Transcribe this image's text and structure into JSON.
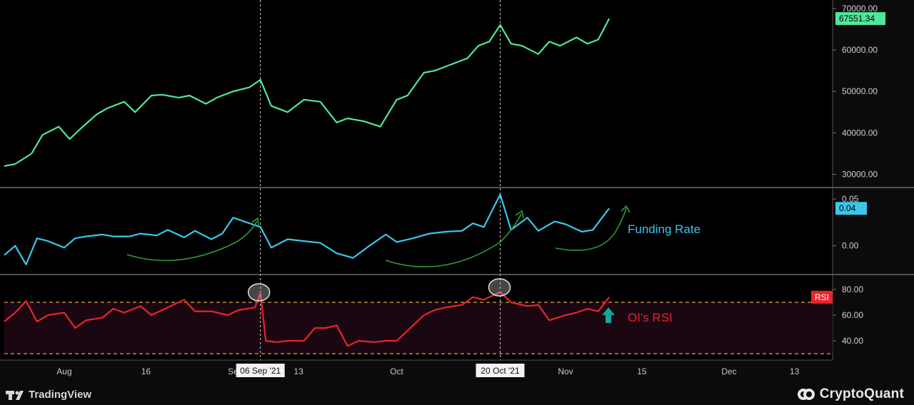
{
  "chart_data": [
    {
      "type": "line",
      "panel": "price",
      "ylim": [
        27000,
        71000
      ],
      "yticks": [
        30000,
        40000,
        50000,
        60000,
        70000
      ],
      "ytick_labels": [
        "30000.00",
        "40000.00",
        "50000.00",
        "60000.00",
        "70000.00"
      ],
      "last_value_label": "67551.34",
      "series": [
        {
          "color": "#4ee89a",
          "x": [
            "2021-07-21",
            "2021-07-23",
            "2021-07-26",
            "2021-07-28",
            "2021-07-31",
            "2021-08-02",
            "2021-08-04",
            "2021-08-07",
            "2021-08-09",
            "2021-08-12",
            "2021-08-14",
            "2021-08-17",
            "2021-08-19",
            "2021-08-22",
            "2021-08-24",
            "2021-08-27",
            "2021-08-29",
            "2021-09-01",
            "2021-09-04",
            "2021-09-06",
            "2021-09-08",
            "2021-09-11",
            "2021-09-14",
            "2021-09-17",
            "2021-09-20",
            "2021-09-22",
            "2021-09-25",
            "2021-09-28",
            "2021-10-01",
            "2021-10-03",
            "2021-10-06",
            "2021-10-08",
            "2021-10-11",
            "2021-10-14",
            "2021-10-16",
            "2021-10-18",
            "2021-10-20",
            "2021-10-22",
            "2021-10-24",
            "2021-10-27",
            "2021-10-29",
            "2021-10-31",
            "2021-11-03",
            "2021-11-05",
            "2021-11-07",
            "2021-11-09"
          ],
          "y": [
            32000,
            32500,
            35000,
            39500,
            41500,
            38500,
            41000,
            44500,
            46000,
            47500,
            45000,
            49000,
            49200,
            48500,
            49000,
            47000,
            48500,
            50000,
            51000,
            52800,
            46500,
            45000,
            48000,
            47500,
            42500,
            43500,
            42800,
            41500,
            48000,
            49000,
            54500,
            55000,
            56500,
            58000,
            61000,
            62000,
            66000,
            61500,
            61000,
            59000,
            62000,
            61000,
            63000,
            61500,
            62500,
            67551
          ]
        }
      ]
    },
    {
      "type": "line",
      "panel": "funding-rate",
      "ylim": [
        -0.03,
        0.06
      ],
      "yticks": [
        0.0,
        0.05
      ],
      "ytick_labels": [
        "0.00",
        "0.05"
      ],
      "last_value_label": "0.04",
      "annotation": "Funding Rate",
      "series": [
        {
          "color": "#3cc6e8",
          "x": [
            "2021-07-21",
            "2021-07-23",
            "2021-07-25",
            "2021-07-27",
            "2021-07-29",
            "2021-08-01",
            "2021-08-03",
            "2021-08-05",
            "2021-08-08",
            "2021-08-10",
            "2021-08-13",
            "2021-08-15",
            "2021-08-18",
            "2021-08-20",
            "2021-08-23",
            "2021-08-25",
            "2021-08-28",
            "2021-08-30",
            "2021-09-01",
            "2021-09-03",
            "2021-09-06",
            "2021-09-08",
            "2021-09-11",
            "2021-09-14",
            "2021-09-17",
            "2021-09-20",
            "2021-09-23",
            "2021-09-26",
            "2021-09-29",
            "2021-10-01",
            "2021-10-04",
            "2021-10-07",
            "2021-10-10",
            "2021-10-13",
            "2021-10-15",
            "2021-10-17",
            "2021-10-20",
            "2021-10-22",
            "2021-10-25",
            "2021-10-27",
            "2021-10-30",
            "2021-11-01",
            "2021-11-04",
            "2021-11-06",
            "2021-11-09"
          ],
          "y": [
            -0.01,
            0.0,
            -0.02,
            0.008,
            0.005,
            -0.002,
            0.008,
            0.01,
            0.012,
            0.01,
            0.01,
            0.013,
            0.011,
            0.017,
            0.009,
            0.016,
            0.007,
            0.013,
            0.03,
            0.026,
            0.02,
            -0.002,
            0.007,
            0.005,
            0.003,
            -0.008,
            -0.013,
            0.0,
            0.012,
            0.004,
            0.008,
            0.013,
            0.015,
            0.016,
            0.024,
            0.02,
            0.055,
            0.017,
            0.03,
            0.016,
            0.026,
            0.023,
            0.015,
            0.017,
            0.04
          ]
        }
      ]
    },
    {
      "type": "line",
      "panel": "rsi",
      "ylim": [
        25,
        90
      ],
      "yticks": [
        40,
        60,
        80
      ],
      "ytick_labels": [
        "40.00",
        "60.00",
        "80.00"
      ],
      "bands": [
        30,
        70
      ],
      "last_value_label": "RSI",
      "annotation": "OI's RSI",
      "series": [
        {
          "color": "#e8242a",
          "x": [
            "2021-07-21",
            "2021-07-23",
            "2021-07-25",
            "2021-07-27",
            "2021-07-29",
            "2021-08-01",
            "2021-08-03",
            "2021-08-05",
            "2021-08-08",
            "2021-08-10",
            "2021-08-12",
            "2021-08-15",
            "2021-08-17",
            "2021-08-20",
            "2021-08-23",
            "2021-08-25",
            "2021-08-28",
            "2021-08-31",
            "2021-09-02",
            "2021-09-05",
            "2021-09-06",
            "2021-09-07",
            "2021-09-09",
            "2021-09-11",
            "2021-09-14",
            "2021-09-16",
            "2021-09-18",
            "2021-09-20",
            "2021-09-22",
            "2021-09-24",
            "2021-09-27",
            "2021-09-29",
            "2021-10-01",
            "2021-10-04",
            "2021-10-06",
            "2021-10-08",
            "2021-10-10",
            "2021-10-13",
            "2021-10-15",
            "2021-10-17",
            "2021-10-20",
            "2021-10-22",
            "2021-10-25",
            "2021-10-27",
            "2021-10-29",
            "2021-11-01",
            "2021-11-03",
            "2021-11-05",
            "2021-11-07",
            "2021-11-09"
          ],
          "y": [
            55,
            62,
            71,
            55,
            60,
            62,
            50,
            56,
            58,
            65,
            62,
            67,
            60,
            66,
            72,
            63,
            63,
            60,
            64,
            66,
            77,
            40,
            39,
            40,
            40,
            50,
            50,
            52,
            36,
            40,
            39,
            40,
            40,
            52,
            60,
            64,
            66,
            68,
            74,
            72,
            78,
            70,
            67,
            68,
            56,
            60,
            62,
            65,
            63,
            74
          ]
        }
      ]
    }
  ],
  "x_axis": {
    "ticks": [
      {
        "date": "2021-08-01",
        "label": "Aug"
      },
      {
        "date": "2021-08-16",
        "label": "16"
      },
      {
        "date": "2021-09-01",
        "label": "Se"
      },
      {
        "date": "2021-09-13",
        "label": "13"
      },
      {
        "date": "2021-10-01",
        "label": "Oct"
      },
      {
        "date": "2021-11-01",
        "label": "Nov"
      },
      {
        "date": "2021-11-15",
        "label": "15"
      },
      {
        "date": "2021-12-01",
        "label": "Dec"
      },
      {
        "date": "2021-12-13",
        "label": "13"
      }
    ],
    "markers": [
      {
        "date": "2021-09-06",
        "label": "06 Sep '21"
      },
      {
        "date": "2021-10-20",
        "label": "20 Oct '21"
      }
    ]
  },
  "branding": {
    "tradingview": "TradingView",
    "cryptoquant": "CryptoQuant"
  },
  "colors": {
    "price": "#4ee89a",
    "funding": "#3cc6e8",
    "rsi": "#e8242a",
    "arrow_green": "#2e9a3a",
    "up_arrow": "#1aa39a",
    "band": "#d8a843"
  }
}
